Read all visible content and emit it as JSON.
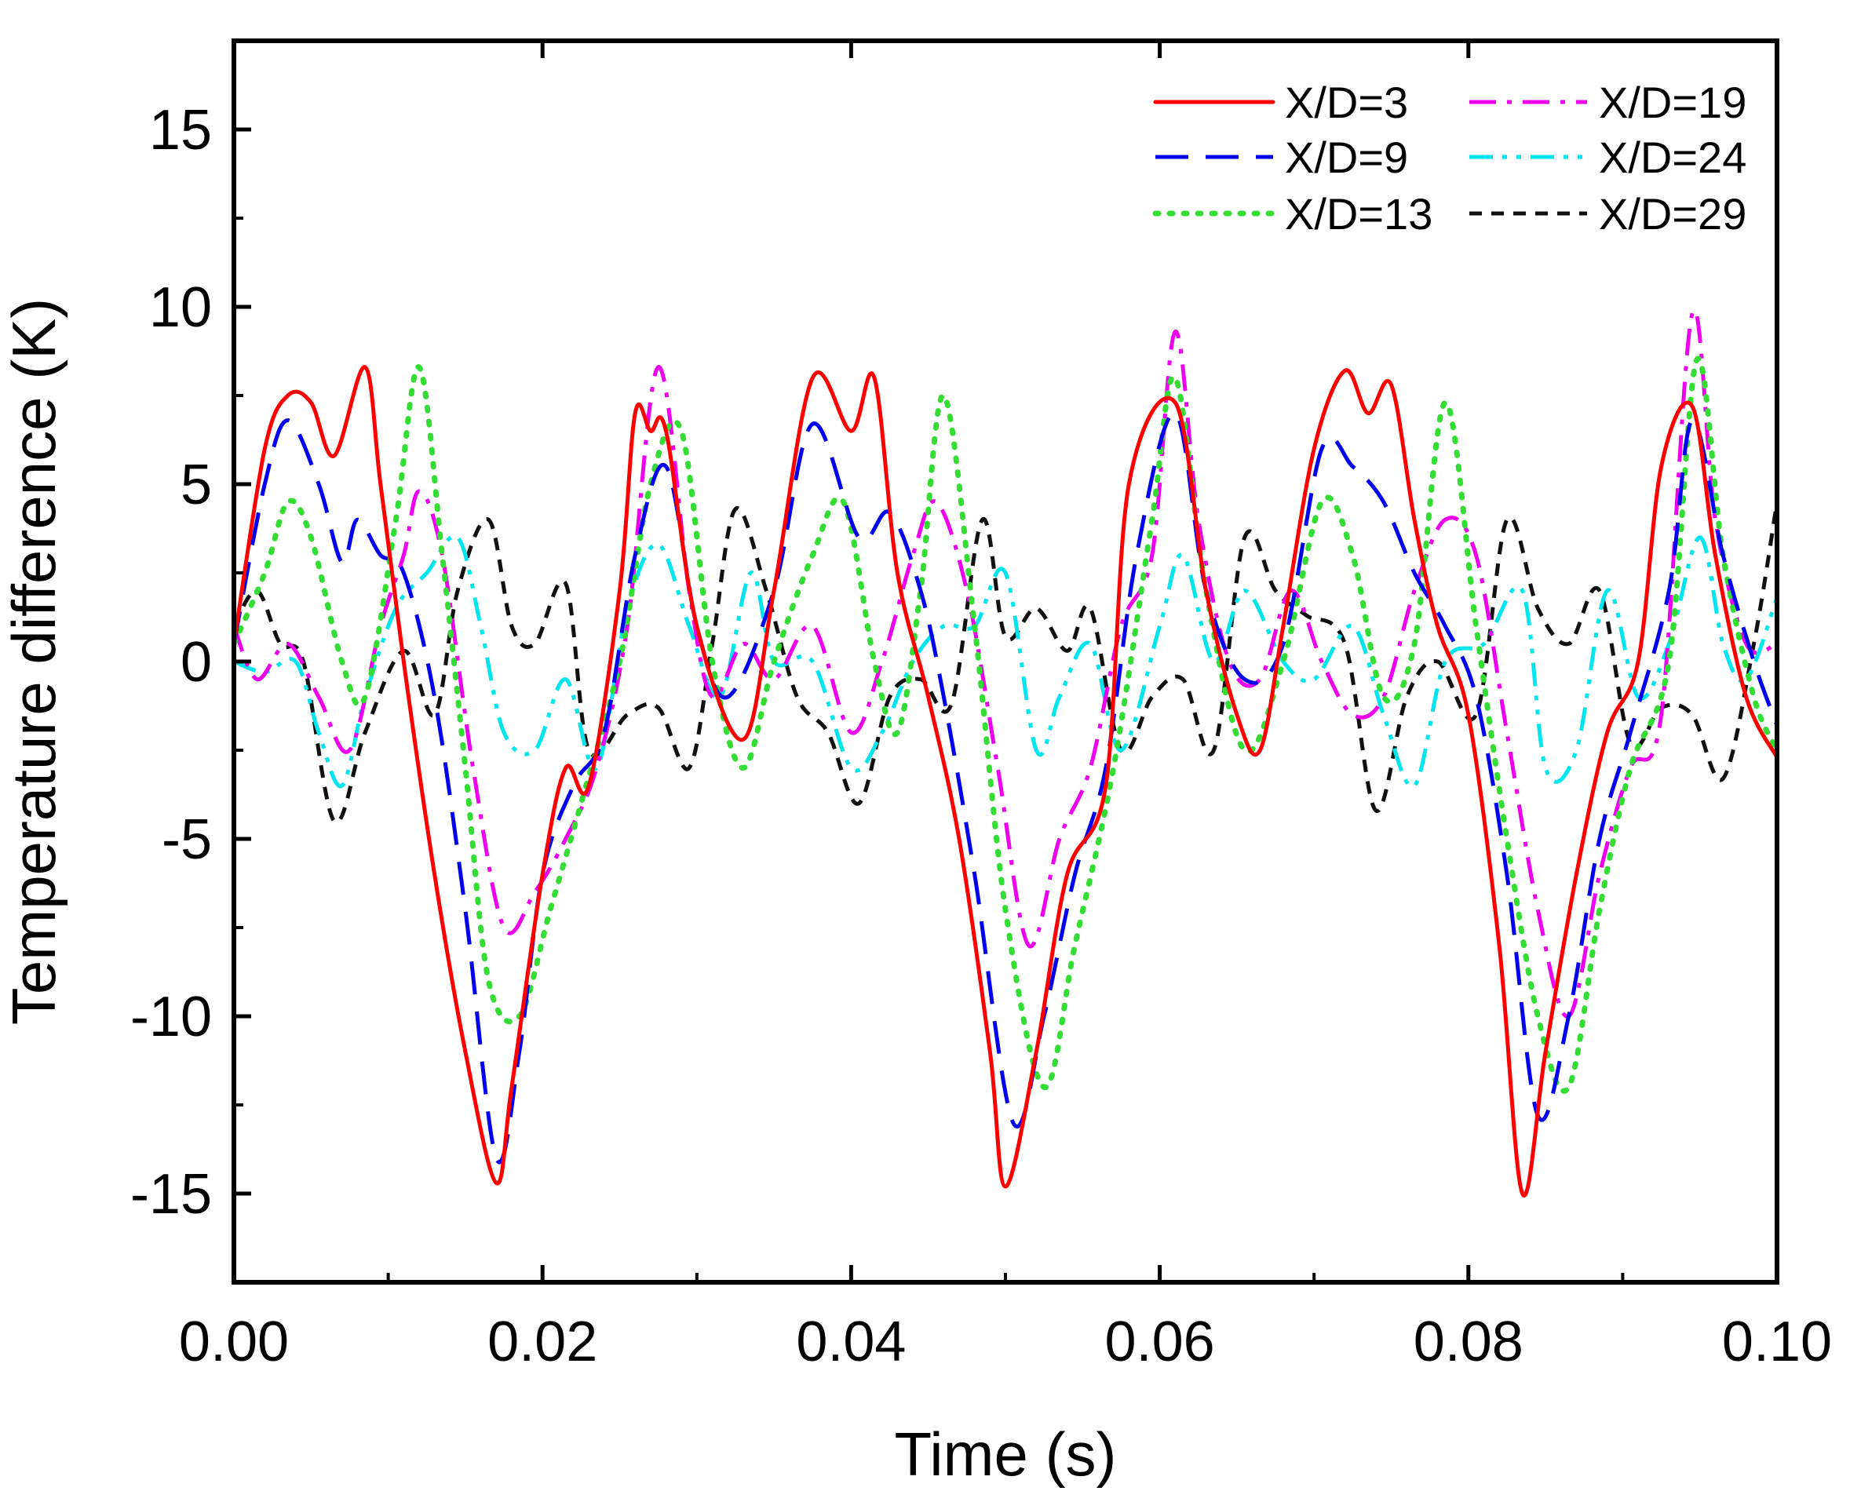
{
  "chart_data": {
    "type": "line",
    "title": "",
    "xlabel": "Time (s)",
    "ylabel": "Temperature difference (K)",
    "xlim": [
      0,
      0.1
    ],
    "ylim": [
      -17.5,
      17.5
    ],
    "xticks": [
      0,
      0.02,
      0.04,
      0.06,
      0.08,
      0.1
    ],
    "xtick_labels": [
      "0.00",
      "0.02",
      "0.04",
      "0.06",
      "0.08",
      "0.10"
    ],
    "yticks": [
      -15,
      -10,
      -5,
      0,
      5,
      10,
      15
    ],
    "ytick_labels": [
      "-15",
      "-10",
      "-5",
      "0",
      "5",
      "10",
      "15"
    ],
    "grid": false,
    "legend_position": "top-right",
    "series": [
      {
        "name": "X/D=3",
        "color": "#ff0000",
        "style": "solid",
        "x": [
          0,
          0.002,
          0.0035,
          0.005,
          0.0065,
          0.0085,
          0.0095,
          0.011,
          0.013,
          0.015,
          0.017,
          0.018,
          0.02,
          0.0215,
          0.023,
          0.025,
          0.026,
          0.027,
          0.028,
          0.03,
          0.033,
          0.035,
          0.0375,
          0.04,
          0.0415,
          0.043,
          0.045,
          0.047,
          0.049,
          0.05,
          0.052,
          0.054,
          0.0565,
          0.058,
          0.061,
          0.063,
          0.065,
          0.0665,
          0.068,
          0.07,
          0.072,
          0.0735,
          0.075,
          0.0765,
          0.078,
          0.08,
          0.082,
          0.0835,
          0.085,
          0.087,
          0.089,
          0.091,
          0.0925,
          0.0945,
          0.096,
          0.098,
          0.1
        ],
        "values": [
          0.5,
          6,
          7.5,
          7.3,
          5.8,
          8.3,
          5,
          0,
          -6,
          -11,
          -14.7,
          -12,
          -6,
          -3,
          -3.5,
          2,
          7,
          6.5,
          6.5,
          1,
          -2.2,
          2,
          8,
          6.5,
          8,
          2.5,
          -1,
          -5,
          -11,
          -14.8,
          -11,
          -6,
          -3.5,
          5,
          7.3,
          2,
          -1.5,
          -2.5,
          1,
          6,
          8.2,
          7,
          7.8,
          4,
          1,
          -1.5,
          -8,
          -15,
          -11,
          -6,
          -2,
          0,
          5.5,
          7.2,
          3,
          -1,
          -2.7
        ]
      },
      {
        "name": "X/D=9",
        "color": "#0000ee",
        "style": "dash",
        "x": [
          0,
          0.002,
          0.0035,
          0.0055,
          0.007,
          0.008,
          0.0095,
          0.011,
          0.013,
          0.015,
          0.017,
          0.0185,
          0.02,
          0.022,
          0.024,
          0.026,
          0.028,
          0.03,
          0.032,
          0.035,
          0.0375,
          0.0405,
          0.0425,
          0.0445,
          0.046,
          0.048,
          0.0505,
          0.0525,
          0.0545,
          0.0565,
          0.0585,
          0.061,
          0.063,
          0.0655,
          0.068,
          0.0705,
          0.0725,
          0.0745,
          0.0765,
          0.0785,
          0.0805,
          0.0825,
          0.0845,
          0.0865,
          0.0885,
          0.0905,
          0.093,
          0.0945,
          0.0965,
          0.0985,
          0.1
        ],
        "values": [
          0.5,
          5,
          6.8,
          5,
          2.8,
          4,
          3,
          2.5,
          -1,
          -7,
          -14,
          -11,
          -6,
          -3.5,
          -2,
          3,
          5.5,
          1,
          -1,
          2,
          6.7,
          3.5,
          4.2,
          2,
          -1,
          -6,
          -13,
          -10,
          -6,
          -3,
          3,
          7,
          2,
          -0.5,
          0.5,
          6,
          5.5,
          4.5,
          2.5,
          1,
          -1,
          -6,
          -12.8,
          -10,
          -5,
          -2,
          2,
          6.8,
          3,
          0,
          -1.8
        ]
      },
      {
        "name": "X/D=13",
        "color": "#33dd33",
        "style": "dot",
        "x": [
          0,
          0.002,
          0.0035,
          0.005,
          0.007,
          0.0085,
          0.0105,
          0.012,
          0.0135,
          0.015,
          0.0165,
          0.0185,
          0.0205,
          0.0225,
          0.025,
          0.027,
          0.029,
          0.031,
          0.033,
          0.035,
          0.0375,
          0.0395,
          0.0415,
          0.043,
          0.0445,
          0.046,
          0.048,
          0.05,
          0.0525,
          0.0545,
          0.057,
          0.0595,
          0.061,
          0.063,
          0.0655,
          0.068,
          0.0705,
          0.0725,
          0.0745,
          0.0765,
          0.0785,
          0.0805,
          0.0825,
          0.0845,
          0.0865,
          0.0885,
          0.0905,
          0.093,
          0.0948,
          0.0965,
          0.0985,
          0.1
        ],
        "values": [
          0.5,
          2.5,
          4.5,
          3.5,
          0,
          -1,
          4,
          8.3,
          3,
          -3,
          -9,
          -10,
          -7,
          -4,
          0,
          5,
          6.5,
          0,
          -3,
          0,
          3,
          4.5,
          0,
          -2,
          2,
          7.5,
          1,
          -7,
          -12,
          -8,
          -3,
          4,
          8,
          2,
          -2.5,
          0,
          4.5,
          3,
          -1,
          0.5,
          7.3,
          1,
          -5,
          -10,
          -12,
          -7,
          -3,
          0,
          8.5,
          3,
          -1,
          -2.5
        ]
      },
      {
        "name": "X/D=19",
        "color": "#ee00ee",
        "style": "dashdot",
        "x": [
          0,
          0.0015,
          0.0035,
          0.0055,
          0.0075,
          0.0095,
          0.011,
          0.012,
          0.0135,
          0.0155,
          0.0175,
          0.0195,
          0.0215,
          0.0235,
          0.0255,
          0.0275,
          0.0295,
          0.031,
          0.033,
          0.035,
          0.0375,
          0.04,
          0.042,
          0.044,
          0.0455,
          0.0475,
          0.0495,
          0.0515,
          0.0535,
          0.0555,
          0.0575,
          0.0595,
          0.061,
          0.0625,
          0.0645,
          0.0665,
          0.0685,
          0.0705,
          0.0725,
          0.0745,
          0.0765,
          0.0785,
          0.0805,
          0.0825,
          0.0845,
          0.0865,
          0.0885,
          0.0905,
          0.0925,
          0.0945,
          0.096,
          0.098,
          0.1
        ],
        "values": [
          1,
          -0.5,
          0.5,
          -1,
          -2.5,
          1,
          3,
          4.8,
          3,
          -3,
          -7.5,
          -6.5,
          -5,
          -3,
          1,
          8.3,
          2,
          -1,
          0.5,
          -0.5,
          1,
          -2,
          0,
          3,
          4.5,
          2,
          -3,
          -8,
          -5,
          -3,
          1,
          3,
          9.3,
          4,
          0,
          -0.5,
          2,
          0,
          -1.5,
          -1,
          2,
          4,
          3,
          -2,
          -7,
          -10,
          -6,
          -3,
          -1.5,
          9.8,
          4,
          0.5,
          0.5
        ]
      },
      {
        "name": "X/D=24",
        "color": "#00e5ee",
        "style": "dashdotdot",
        "x": [
          0,
          0.002,
          0.004,
          0.0055,
          0.007,
          0.0085,
          0.0105,
          0.0125,
          0.0145,
          0.016,
          0.0175,
          0.0195,
          0.0215,
          0.0235,
          0.0255,
          0.0275,
          0.0295,
          0.0315,
          0.0335,
          0.035,
          0.0375,
          0.04,
          0.042,
          0.044,
          0.046,
          0.048,
          0.05,
          0.052,
          0.0535,
          0.0555,
          0.0575,
          0.06,
          0.0615,
          0.0635,
          0.0655,
          0.068,
          0.07,
          0.0725,
          0.0745,
          0.0765,
          0.0785,
          0.081,
          0.0835,
          0.085,
          0.087,
          0.089,
          0.091,
          0.093,
          0.095,
          0.0965,
          0.098,
          0.1
        ],
        "values": [
          0,
          -0.3,
          0,
          -2,
          -3.5,
          -1,
          1.5,
          2.5,
          3.5,
          1,
          -2,
          -2.5,
          -0.5,
          -3,
          1.5,
          3.3,
          1,
          -1,
          2.5,
          0,
          0,
          -3,
          -2,
          0,
          1,
          1,
          2.5,
          -2.5,
          -1,
          0.5,
          -2.5,
          1,
          3,
          0,
          2,
          0,
          -0.5,
          1,
          -1.5,
          -3.5,
          0,
          0.5,
          2,
          -3,
          -2.5,
          2,
          -1,
          0.5,
          3.5,
          0.5,
          -0.5,
          1.8
        ]
      },
      {
        "name": "X/D=29",
        "color": "#111111",
        "style": "shortdash",
        "x": [
          0,
          0.0015,
          0.003,
          0.0045,
          0.0065,
          0.0085,
          0.011,
          0.013,
          0.0145,
          0.0165,
          0.018,
          0.0195,
          0.0215,
          0.023,
          0.0255,
          0.0275,
          0.0295,
          0.031,
          0.0325,
          0.0345,
          0.0365,
          0.0385,
          0.0405,
          0.0425,
          0.0445,
          0.0465,
          0.0485,
          0.05,
          0.052,
          0.054,
          0.0555,
          0.0575,
          0.0595,
          0.0615,
          0.0635,
          0.0655,
          0.0675,
          0.0695,
          0.072,
          0.074,
          0.076,
          0.078,
          0.0805,
          0.0825,
          0.0845,
          0.0865,
          0.0885,
          0.0905,
          0.0925,
          0.0945,
          0.0965,
          0.0985,
          0.1
        ],
        "values": [
          1,
          2,
          0.5,
          0,
          -4.5,
          -2,
          0.3,
          -1.5,
          2,
          4,
          1,
          0.5,
          2.2,
          -2.5,
          -1.5,
          -1.3,
          -3,
          0.5,
          4.3,
          2,
          -1,
          -2,
          -4,
          -1,
          -0.5,
          -1.2,
          4,
          0.7,
          1.5,
          0.3,
          1.5,
          -2.5,
          -1,
          -0.5,
          -2.5,
          3.5,
          2,
          1.3,
          0.5,
          -4.2,
          -1,
          0,
          -1.5,
          4,
          1.5,
          0.5,
          2,
          -2.3,
          -1.3,
          -1.5,
          -3.3,
          0.5,
          4.5
        ]
      }
    ]
  }
}
